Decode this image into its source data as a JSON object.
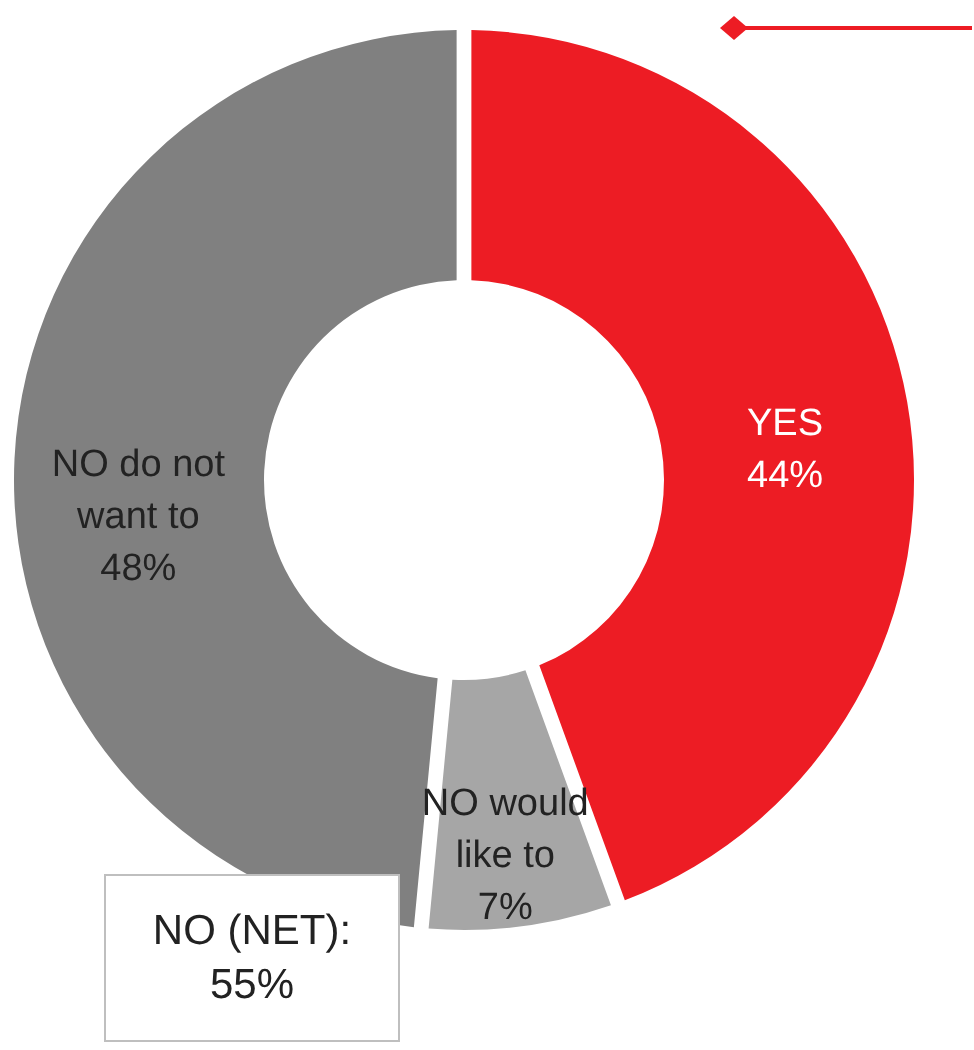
{
  "chart_data": {
    "type": "donut",
    "categories": [
      "YES",
      "NO would like to",
      "NO do not want to"
    ],
    "values": [
      44,
      7,
      48
    ],
    "value_labels": [
      "44%",
      "7%",
      "48%"
    ],
    "colors": [
      "#ed1c24",
      "#a6a6a6",
      "#808080"
    ],
    "annotations": [
      "NO (NET): 55%"
    ]
  }
}
